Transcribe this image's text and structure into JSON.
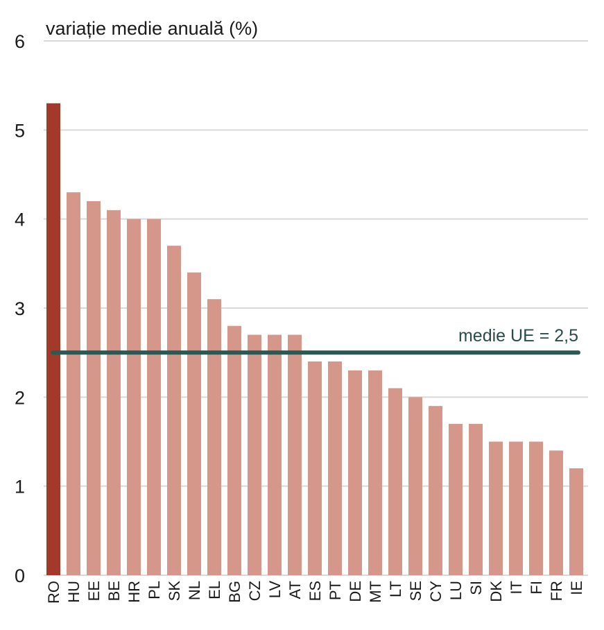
{
  "chart_data": {
    "type": "bar",
    "ylabel": "variație medie anuală (%)",
    "categories": [
      "RO",
      "HU",
      "EE",
      "BE",
      "HR",
      "PL",
      "SK",
      "NL",
      "EL",
      "BG",
      "CZ",
      "LV",
      "AT",
      "ES",
      "PT",
      "DE",
      "MT",
      "LT",
      "SE",
      "CY",
      "LU",
      "SI",
      "DK",
      "IT",
      "FI",
      "FR",
      "IE"
    ],
    "values": [
      5.3,
      4.3,
      4.2,
      4.1,
      4.0,
      4.0,
      3.7,
      3.4,
      3.1,
      2.8,
      2.7,
      2.7,
      2.7,
      2.4,
      2.4,
      2.3,
      2.3,
      2.1,
      2.0,
      1.9,
      1.7,
      1.7,
      1.5,
      1.5,
      1.5,
      1.4,
      1.2
    ],
    "ylim": [
      0,
      6
    ],
    "yticks": [
      "0",
      "1",
      "2",
      "3",
      "4",
      "5",
      "6"
    ],
    "grid": true,
    "highlight_category": "RO",
    "colors": {
      "highlight": "#a3392b",
      "bar": "#d4978a",
      "reference_line": "#2d5954",
      "grid": "#d9d9d9"
    },
    "reference_line": {
      "label": "medie UE = 2,5",
      "value": 2.5
    }
  }
}
